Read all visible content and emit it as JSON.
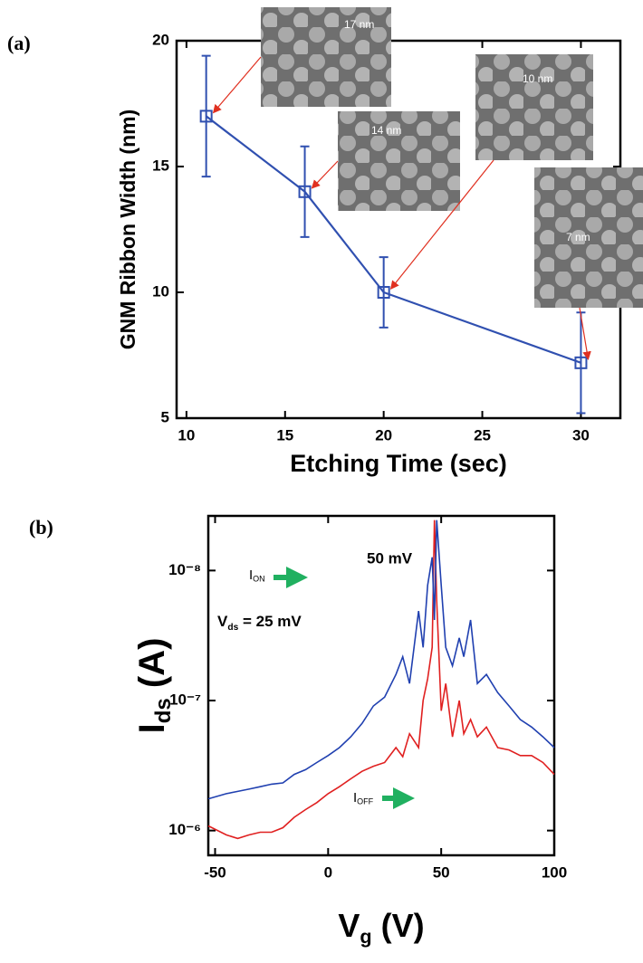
{
  "chart_data": [
    {
      "type": "line",
      "panel": "(a)",
      "x_label": "Etching Time (sec)",
      "y_label": "GNM Ribbon Width (nm)",
      "x": [
        11,
        16,
        20,
        30
      ],
      "values": [
        17,
        14,
        10,
        7.2
      ],
      "errors": [
        2.4,
        1.8,
        1.4,
        2.0
      ],
      "color": "#3050b0",
      "xlim": [
        9.5,
        32
      ],
      "ylim": [
        5,
        20
      ],
      "xticks": [
        10,
        15,
        20,
        25,
        30
      ],
      "yticks": [
        5,
        10,
        15,
        20
      ],
      "insets": [
        "17 nm",
        "14 nm",
        "10 nm",
        "7 nm"
      ]
    },
    {
      "type": "line",
      "panel": "(b)",
      "log_y": true,
      "x_label": {
        "main": "V",
        "sub": "g",
        "rest": " (V)"
      },
      "y_label": {
        "main": "I",
        "sub": "ds",
        "rest": " (A)"
      },
      "x": [
        -53,
        -45,
        -40,
        -35,
        -30,
        -25,
        -20,
        -15,
        -10,
        -5,
        0,
        5,
        10,
        15,
        20,
        25,
        30,
        33,
        36,
        40,
        42,
        44,
        46,
        47,
        48,
        50,
        52,
        55,
        58,
        60,
        63,
        66,
        70,
        75,
        80,
        85,
        90,
        95,
        100
      ],
      "series": [
        {
          "name": "50 mV",
          "color": "#e02020",
          "values": [
            9.2e-07,
            1.08e-06,
            1.15e-06,
            1.08e-06,
            1.03e-06,
            1.03e-06,
            9.5e-07,
            7.9e-07,
            6.9e-07,
            6.1e-07,
            5.2e-07,
            4.6e-07,
            4e-07,
            3.5e-07,
            3.2e-07,
            3e-07,
            2.3e-07,
            2.7e-07,
            1.8e-07,
            2.3e-07,
            1e-07,
            6.8e-08,
            3.9e-08,
            4.1e-09,
            1.7e-08,
            1.2e-07,
            7.4e-08,
            1.9e-07,
            1e-07,
            1.8e-07,
            1.4e-07,
            1.9e-07,
            1.6e-07,
            2.3e-07,
            2.4e-07,
            2.65e-07,
            2.65e-07,
            3e-07,
            3.7e-07
          ]
        },
        {
          "name": "25 mV",
          "color": "#2040b0",
          "values": [
            5.7e-07,
            5.2e-07,
            5e-07,
            4.8e-07,
            4.6e-07,
            4.4e-07,
            4.3e-07,
            3.7e-07,
            3.4e-07,
            3e-07,
            2.65e-07,
            2.3e-07,
            1.9e-07,
            1.5e-07,
            1.1e-07,
            9.4e-08,
            6.3e-08,
            4.6e-08,
            7.4e-08,
            2.05e-08,
            3.9e-08,
            1.3e-08,
            7.9e-09,
            2.4e-08,
            4.1e-09,
            1.3e-08,
            3.9e-08,
            5.4e-08,
            3.3e-08,
            4.6e-08,
            2.4e-08,
            7.4e-08,
            6.3e-08,
            8.7e-08,
            1.1e-07,
            1.4e-07,
            1.6e-07,
            1.9e-07,
            2.3e-07
          ]
        }
      ],
      "xlim": [
        -53,
        100
      ],
      "ylim": [
        1.55e-06,
        3.8e-09
      ],
      "xticks": [
        -50,
        0,
        50,
        100
      ],
      "yticks": [
        {
          "value": 1e-06,
          "label": "10⁻⁶"
        },
        {
          "value": 1e-07,
          "label": "10⁻⁷"
        },
        {
          "value": 1e-08,
          "label": "10⁻⁸"
        }
      ],
      "annotations": [
        {
          "main": "V",
          "sub": "ds",
          "rest": " = 25 mV"
        },
        {
          "main": "I",
          "sub": "ON"
        },
        {
          "main": "I",
          "sub": "OFF"
        }
      ]
    }
  ]
}
